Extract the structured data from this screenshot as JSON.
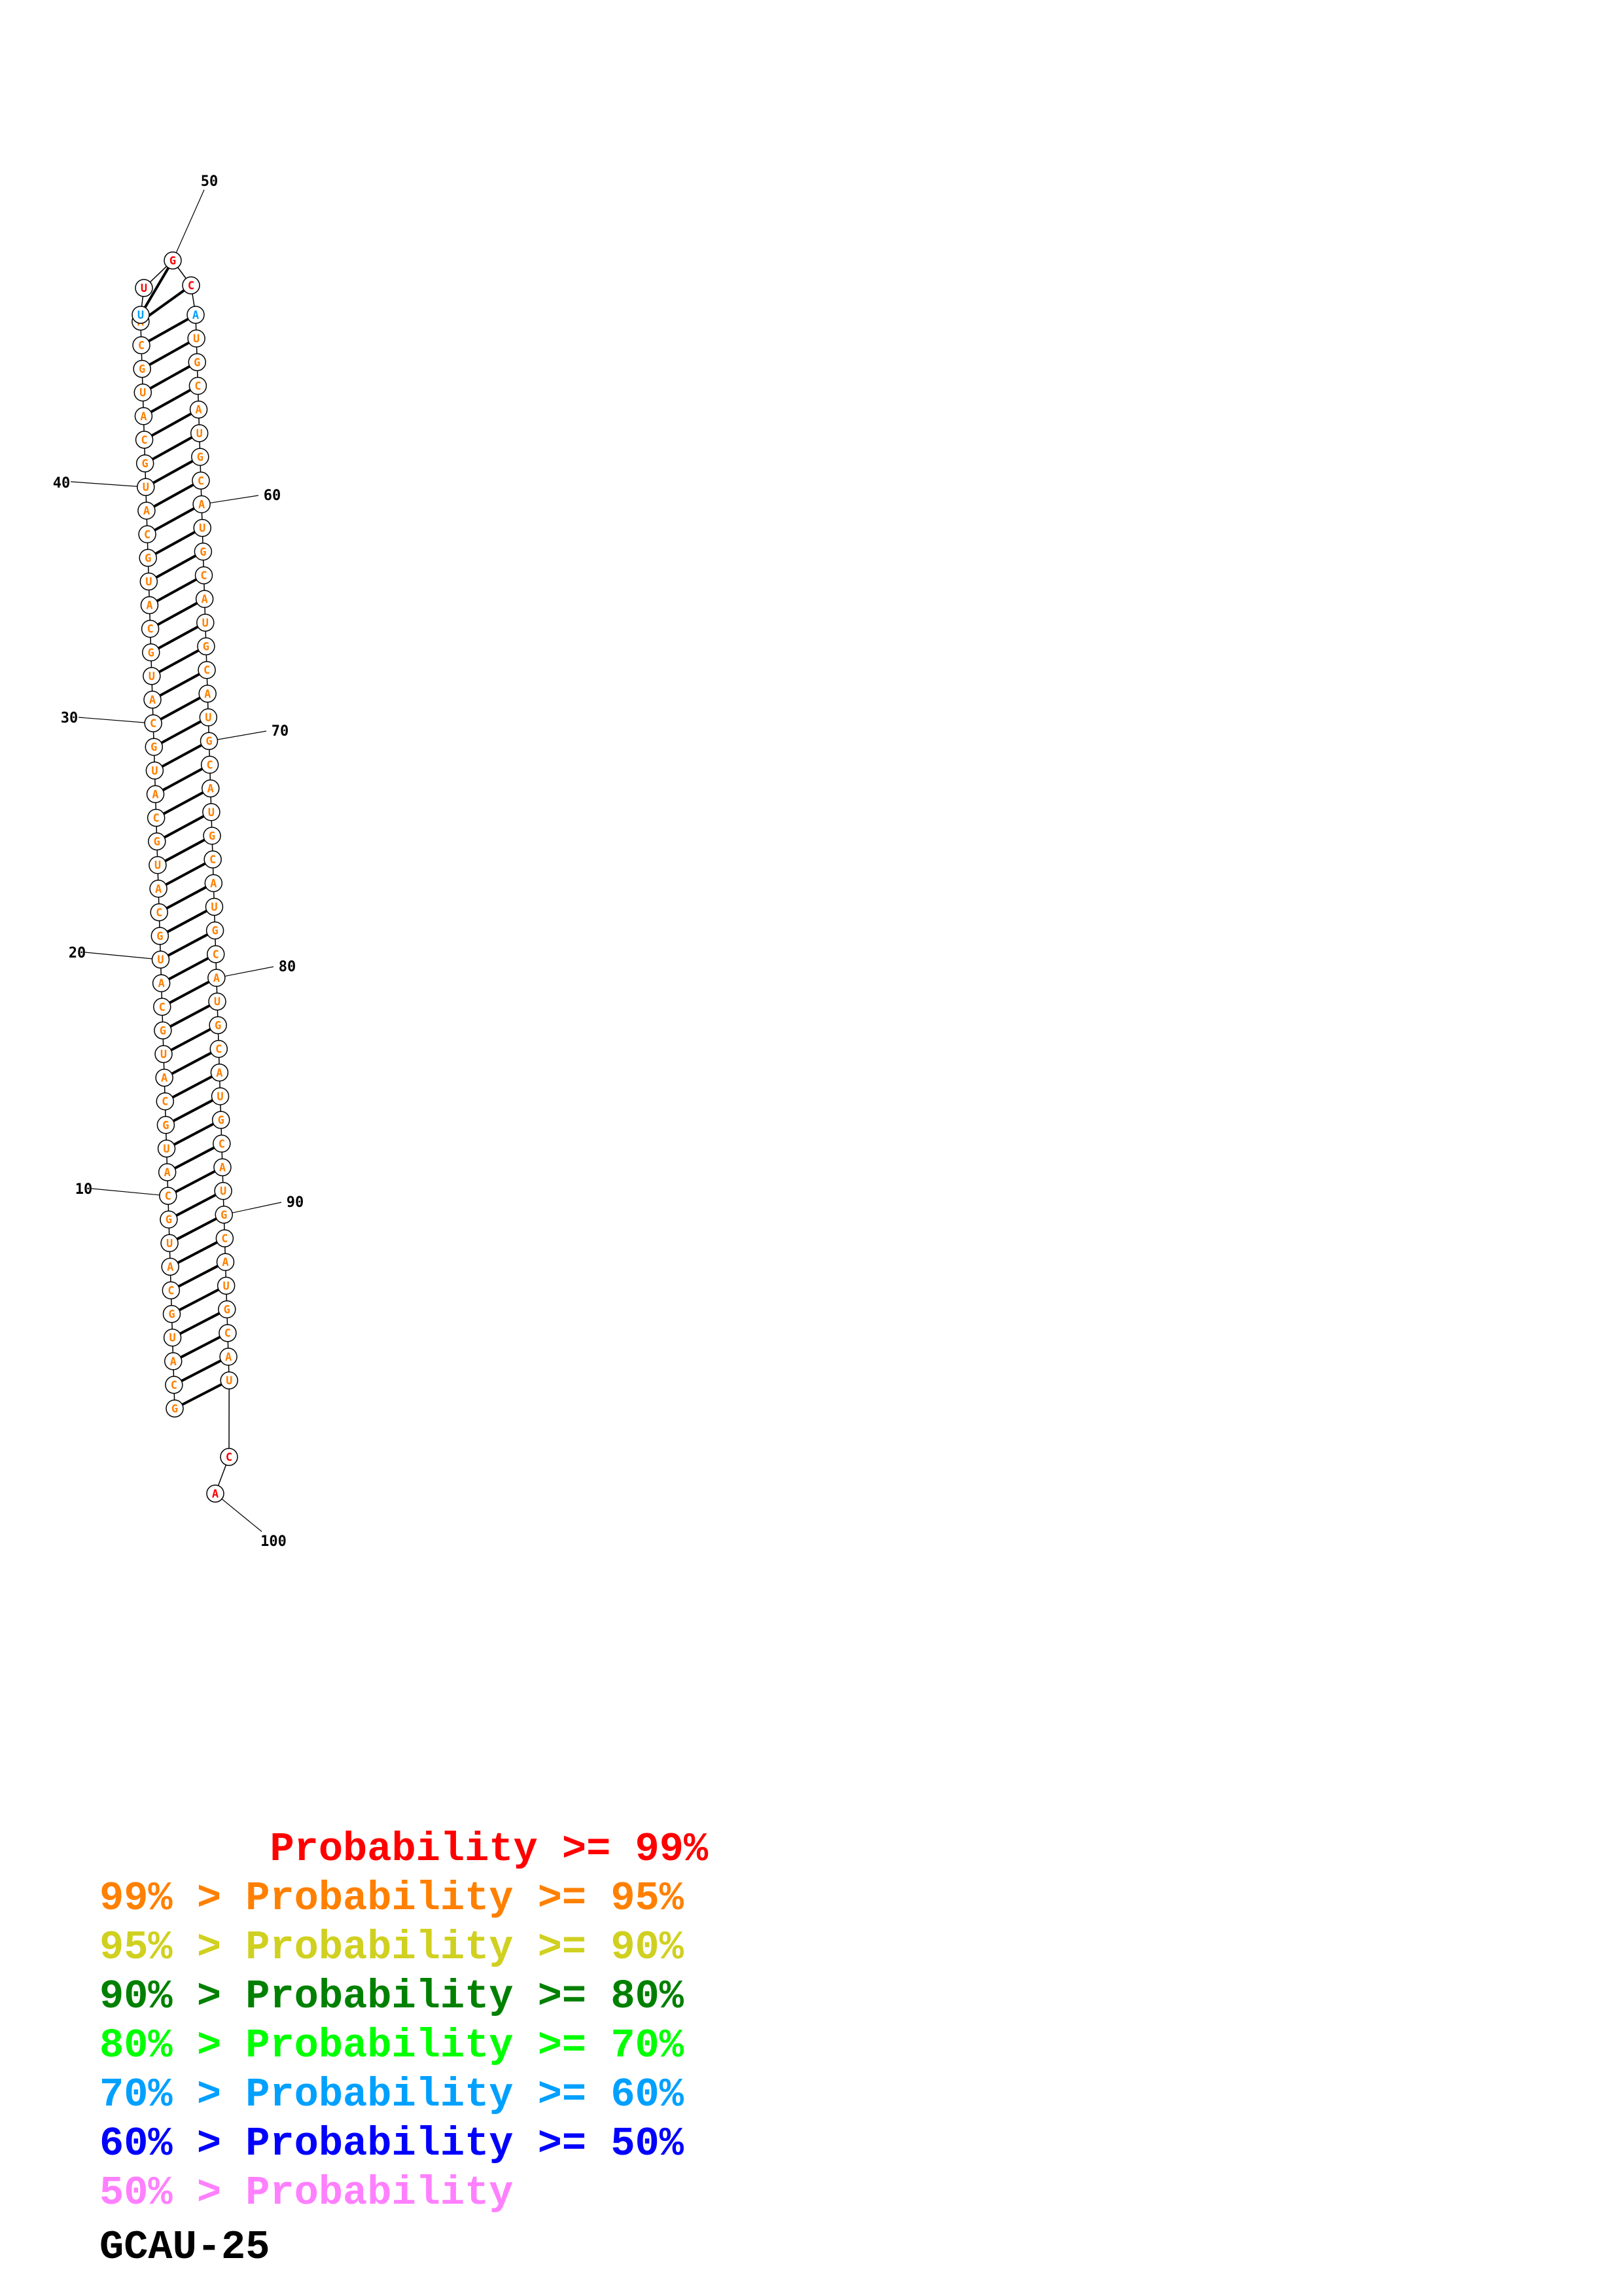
{
  "structure": {
    "sequence": "GCAUGCAUGCAUGCAUGCAUGCAUGCAUGCAUGCAUGCAUGCAUGCAUUGCAUGCAUGCAUGCAUGCAUGCAUGCAUGCAUGCAUGCAUGCAUGCAUCAU",
    "number_labels": [
      "10",
      "20",
      "30",
      "40",
      "50",
      "60",
      "70",
      "80",
      "90",
      "100"
    ],
    "colors": {
      "red": "#ff0000",
      "orange": "#ff8000",
      "cyan": "#00a0ff",
      "outline": "#000000"
    },
    "unpaired_hairpin_probability": "red",
    "closing_pair_probability": "cyan",
    "stem_probability": "orange",
    "tail_probability": "red"
  },
  "legend": [
    {
      "label": "       Probability >= 99%",
      "color": "#ff0000"
    },
    {
      "label": "99% > Probability >= 95%",
      "color": "#ff8000"
    },
    {
      "label": "95% > Probability >= 90%",
      "color": "#d0d020"
    },
    {
      "label": "90% > Probability >= 80%",
      "color": "#008000"
    },
    {
      "label": "80% > Probability >= 70%",
      "color": "#00ff00"
    },
    {
      "label": "70% > Probability >= 60%",
      "color": "#00a0ff"
    },
    {
      "label": "60% > Probability >= 50%",
      "color": "#0000ff"
    },
    {
      "label": "50% > Probability",
      "color": "#ff80ff"
    }
  ],
  "caption": "GCAU-25"
}
